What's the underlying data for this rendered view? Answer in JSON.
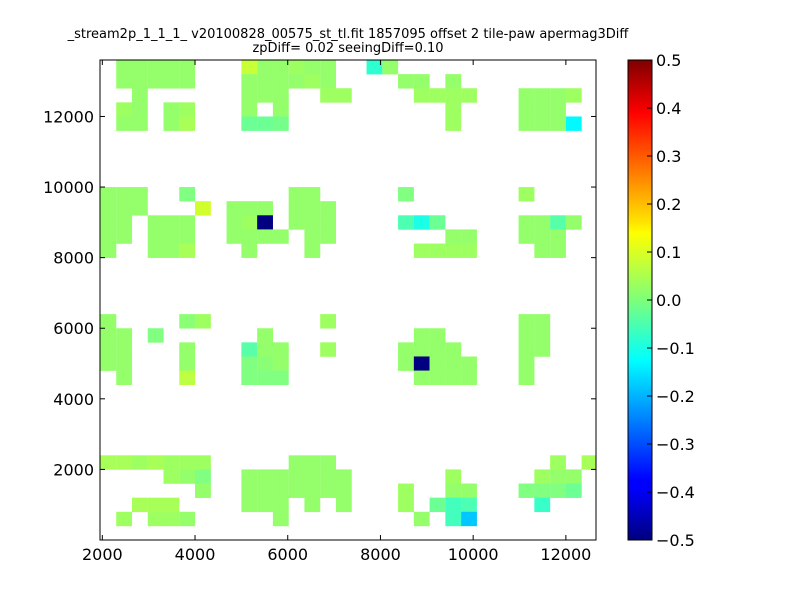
{
  "chart_data": {
    "type": "heatmap",
    "title": "_stream2p_1_1_1_ v20100828_00575_st_tl.fit 1857095 offset 2 tile-paw apermag3Diff",
    "subtitle": "zpDiff= 0.02 seeingDiff=0.10",
    "xlim": [
      1950,
      12650
    ],
    "ylim": [
      0,
      13600
    ],
    "xticks": [
      2000,
      4000,
      6000,
      8000,
      10000,
      12000
    ],
    "yticks": [
      2000,
      4000,
      6000,
      8000,
      10000,
      12000
    ],
    "xtick_labels": [
      "2000",
      "4000",
      "6000",
      "8000",
      "10000",
      "12000"
    ],
    "ytick_labels": [
      "2000",
      "4000",
      "6000",
      "8000",
      "10000",
      "12000"
    ],
    "grid": false,
    "cell_size": [
      335,
      400
    ],
    "colormap": "jet",
    "colorbar": {
      "vmin": -0.5,
      "vmax": 0.5,
      "ticks": [
        0.5,
        0.4,
        0.3,
        0.2,
        0.1,
        0.0,
        -0.1,
        -0.2,
        -0.3,
        -0.4,
        -0.5
      ],
      "tick_labels": [
        "0.5",
        "0.4",
        "0.3",
        "0.2",
        "0.1",
        "0.0",
        "−0.1",
        "−0.2",
        "−0.3",
        "−0.4",
        "−0.5"
      ]
    },
    "cells": [
      [
        2300,
        13200,
        0.02
      ],
      [
        2640,
        13200,
        0.02
      ],
      [
        2980,
        13200,
        0.02
      ],
      [
        3320,
        13200,
        0.02
      ],
      [
        3660,
        13200,
        0.02
      ],
      [
        5000,
        13200,
        0.07
      ],
      [
        5340,
        13200,
        0.02
      ],
      [
        5680,
        13200,
        0.02
      ],
      [
        6020,
        13200,
        0.03
      ],
      [
        6360,
        13200,
        0.02
      ],
      [
        6700,
        13200,
        0.02
      ],
      [
        7700,
        13200,
        -0.08
      ],
      [
        8040,
        13200,
        0.02
      ],
      [
        2300,
        12800,
        0.02
      ],
      [
        2640,
        12800,
        0.02
      ],
      [
        2980,
        12800,
        0.02
      ],
      [
        3320,
        12800,
        0.02
      ],
      [
        3660,
        12800,
        0.02
      ],
      [
        5000,
        12800,
        0.02
      ],
      [
        5340,
        12800,
        0.02
      ],
      [
        5680,
        12800,
        0.02
      ],
      [
        6020,
        12800,
        0.02
      ],
      [
        6360,
        12800,
        0.03
      ],
      [
        6700,
        12800,
        0.02
      ],
      [
        8380,
        12800,
        0.02
      ],
      [
        8720,
        12800,
        0.02
      ],
      [
        9400,
        12800,
        0.02
      ],
      [
        2640,
        12400,
        0.02
      ],
      [
        5000,
        12400,
        0.02
      ],
      [
        5340,
        12400,
        0.02
      ],
      [
        5680,
        12400,
        0.02
      ],
      [
        6700,
        12400,
        0.03
      ],
      [
        7040,
        12400,
        0.03
      ],
      [
        8720,
        12400,
        0.03
      ],
      [
        9060,
        12400,
        0.03
      ],
      [
        9400,
        12400,
        0.03
      ],
      [
        9740,
        12400,
        0.03
      ],
      [
        10980,
        12400,
        0.02
      ],
      [
        11320,
        12400,
        0.02
      ],
      [
        11660,
        12400,
        0.02
      ],
      [
        12000,
        12400,
        0.03
      ],
      [
        2300,
        12000,
        0.03
      ],
      [
        2640,
        12000,
        0.02
      ],
      [
        3320,
        12000,
        0.02
      ],
      [
        3660,
        12000,
        0.03
      ],
      [
        5000,
        12000,
        0.02
      ],
      [
        5680,
        12000,
        0.02
      ],
      [
        9400,
        12000,
        0.03
      ],
      [
        10980,
        12000,
        0.02
      ],
      [
        11320,
        12000,
        0.02
      ],
      [
        11660,
        12000,
        0.02
      ],
      [
        2300,
        11600,
        0.02
      ],
      [
        2640,
        11600,
        0.02
      ],
      [
        3320,
        11600,
        0.02
      ],
      [
        3660,
        11600,
        0.04
      ],
      [
        5000,
        11600,
        -0.02
      ],
      [
        5340,
        11600,
        -0.02
      ],
      [
        5680,
        11600,
        -0.01
      ],
      [
        9400,
        11600,
        0.03
      ],
      [
        10980,
        11600,
        0.02
      ],
      [
        11320,
        11600,
        0.02
      ],
      [
        11660,
        11600,
        0.02
      ],
      [
        12000,
        11600,
        -0.13
      ],
      [
        1960,
        9600,
        0.02
      ],
      [
        2300,
        9600,
        0.02
      ],
      [
        2640,
        9600,
        0.02
      ],
      [
        3660,
        9600,
        0.0
      ],
      [
        6020,
        9600,
        0.02
      ],
      [
        6360,
        9600,
        0.02
      ],
      [
        8380,
        9600,
        0.0
      ],
      [
        10980,
        9600,
        0.03
      ],
      [
        1960,
        9200,
        0.02
      ],
      [
        2300,
        9200,
        0.02
      ],
      [
        2640,
        9200,
        0.02
      ],
      [
        4000,
        9200,
        0.08
      ],
      [
        4680,
        9200,
        0.02
      ],
      [
        5000,
        9200,
        0.02
      ],
      [
        5340,
        9200,
        0.02
      ],
      [
        6020,
        9200,
        0.02
      ],
      [
        6360,
        9200,
        0.02
      ],
      [
        6700,
        9200,
        0.02
      ],
      [
        1960,
        8800,
        0.02
      ],
      [
        2300,
        8800,
        0.02
      ],
      [
        2980,
        8800,
        0.02
      ],
      [
        3320,
        8800,
        0.02
      ],
      [
        3660,
        8800,
        0.02
      ],
      [
        4680,
        8800,
        0.02
      ],
      [
        5000,
        8800,
        0.03
      ],
      [
        5340,
        8800,
        -0.5
      ],
      [
        6020,
        8800,
        0.02
      ],
      [
        6360,
        8800,
        0.02
      ],
      [
        6700,
        8800,
        0.02
      ],
      [
        8380,
        8800,
        -0.05
      ],
      [
        8720,
        8800,
        -0.1
      ],
      [
        9060,
        8800,
        -0.02
      ],
      [
        10980,
        8800,
        0.02
      ],
      [
        11320,
        8800,
        0.02
      ],
      [
        11660,
        8800,
        -0.04
      ],
      [
        12000,
        8800,
        0.02
      ],
      [
        1960,
        8400,
        0.02
      ],
      [
        2300,
        8400,
        0.02
      ],
      [
        2980,
        8400,
        0.02
      ],
      [
        3320,
        8400,
        0.02
      ],
      [
        3660,
        8400,
        0.02
      ],
      [
        4680,
        8400,
        0.02
      ],
      [
        5000,
        8400,
        0.02
      ],
      [
        5340,
        8400,
        0.02
      ],
      [
        5680,
        8400,
        0.02
      ],
      [
        6360,
        8400,
        0.02
      ],
      [
        6700,
        8400,
        0.02
      ],
      [
        9400,
        8400,
        0.02
      ],
      [
        9740,
        8400,
        0.02
      ],
      [
        10980,
        8400,
        0.02
      ],
      [
        11320,
        8400,
        0.02
      ],
      [
        11660,
        8400,
        0.02
      ],
      [
        1960,
        8000,
        0.02
      ],
      [
        2980,
        8000,
        0.02
      ],
      [
        3320,
        8000,
        0.02
      ],
      [
        3660,
        8000,
        0.04
      ],
      [
        5000,
        8000,
        0.02
      ],
      [
        6360,
        8000,
        0.02
      ],
      [
        8720,
        8000,
        0.03
      ],
      [
        9060,
        8000,
        0.03
      ],
      [
        9400,
        8000,
        0.03
      ],
      [
        9740,
        8000,
        0.03
      ],
      [
        11320,
        8000,
        0.02
      ],
      [
        11660,
        8000,
        0.02
      ],
      [
        1960,
        6000,
        0.02
      ],
      [
        3660,
        6000,
        0.01
      ],
      [
        4000,
        6000,
        0.03
      ],
      [
        6700,
        6000,
        0.03
      ],
      [
        10980,
        6000,
        0.02
      ],
      [
        11320,
        6000,
        0.02
      ],
      [
        1960,
        5600,
        0.02
      ],
      [
        2300,
        5600,
        0.02
      ],
      [
        2980,
        5600,
        0.0
      ],
      [
        5340,
        5600,
        0.02
      ],
      [
        8720,
        5600,
        0.02
      ],
      [
        9060,
        5600,
        0.02
      ],
      [
        10980,
        5600,
        0.02
      ],
      [
        11320,
        5600,
        0.02
      ],
      [
        1960,
        5200,
        0.02
      ],
      [
        2300,
        5200,
        0.02
      ],
      [
        3660,
        5200,
        0.02
      ],
      [
        5000,
        5200,
        -0.04
      ],
      [
        5340,
        5200,
        0.02
      ],
      [
        5680,
        5200,
        0.02
      ],
      [
        6700,
        5200,
        0.03
      ],
      [
        8380,
        5200,
        0.02
      ],
      [
        8720,
        5200,
        0.02
      ],
      [
        9060,
        5200,
        0.02
      ],
      [
        9400,
        5200,
        0.02
      ],
      [
        10980,
        5200,
        0.02
      ],
      [
        11320,
        5200,
        0.02
      ],
      [
        1960,
        4800,
        0.02
      ],
      [
        2300,
        4800,
        0.02
      ],
      [
        3660,
        4800,
        0.02
      ],
      [
        5000,
        4800,
        0.0
      ],
      [
        5340,
        4800,
        0.01
      ],
      [
        5680,
        4800,
        0.02
      ],
      [
        8380,
        4800,
        0.02
      ],
      [
        8720,
        4800,
        -0.5
      ],
      [
        9060,
        4800,
        0.02
      ],
      [
        9400,
        4800,
        0.02
      ],
      [
        9740,
        4800,
        0.02
      ],
      [
        10980,
        4800,
        0.02
      ],
      [
        2300,
        4400,
        0.02
      ],
      [
        3660,
        4400,
        0.06
      ],
      [
        5000,
        4400,
        0.0
      ],
      [
        5340,
        4400,
        0.0
      ],
      [
        5680,
        4400,
        0.0
      ],
      [
        8720,
        4400,
        0.02
      ],
      [
        9060,
        4400,
        0.02
      ],
      [
        9400,
        4400,
        0.02
      ],
      [
        9740,
        4400,
        0.02
      ],
      [
        10980,
        4400,
        0.02
      ],
      [
        1960,
        2000,
        0.04
      ],
      [
        2300,
        2000,
        0.04
      ],
      [
        2640,
        2000,
        0.03
      ],
      [
        2980,
        2000,
        0.04
      ],
      [
        3320,
        2000,
        0.03
      ],
      [
        3660,
        2000,
        0.03
      ],
      [
        4000,
        2000,
        0.03
      ],
      [
        6020,
        2000,
        0.02
      ],
      [
        6360,
        2000,
        0.02
      ],
      [
        6700,
        2000,
        0.02
      ],
      [
        11660,
        2000,
        0.03
      ],
      [
        12340,
        2000,
        0.04
      ],
      [
        3320,
        1600,
        0.03
      ],
      [
        3660,
        1600,
        0.02
      ],
      [
        4000,
        1600,
        0.0
      ],
      [
        5000,
        1600,
        0.02
      ],
      [
        5340,
        1600,
        0.02
      ],
      [
        5680,
        1600,
        0.02
      ],
      [
        6020,
        1600,
        0.02
      ],
      [
        6360,
        1600,
        0.02
      ],
      [
        6700,
        1600,
        0.02
      ],
      [
        7040,
        1600,
        0.02
      ],
      [
        9400,
        1600,
        0.03
      ],
      [
        11320,
        1600,
        0.03
      ],
      [
        11660,
        1600,
        0.02
      ],
      [
        12000,
        1600,
        0.02
      ],
      [
        4000,
        1200,
        0.02
      ],
      [
        5000,
        1200,
        0.02
      ],
      [
        5340,
        1200,
        0.02
      ],
      [
        5680,
        1200,
        0.02
      ],
      [
        6020,
        1200,
        0.02
      ],
      [
        6360,
        1200,
        0.02
      ],
      [
        6700,
        1200,
        0.02
      ],
      [
        7040,
        1200,
        0.02
      ],
      [
        8380,
        1200,
        0.03
      ],
      [
        9400,
        1200,
        0.02
      ],
      [
        9740,
        1200,
        0.02
      ],
      [
        10980,
        1200,
        0.0
      ],
      [
        11320,
        1200,
        0.0
      ],
      [
        11660,
        1200,
        0.0
      ],
      [
        12000,
        1200,
        -0.02
      ],
      [
        2640,
        800,
        0.04
      ],
      [
        2980,
        800,
        0.04
      ],
      [
        3320,
        800,
        0.04
      ],
      [
        5000,
        800,
        0.02
      ],
      [
        5340,
        800,
        0.02
      ],
      [
        5680,
        800,
        0.02
      ],
      [
        6360,
        800,
        0.02
      ],
      [
        7040,
        800,
        0.02
      ],
      [
        8380,
        800,
        0.03
      ],
      [
        9060,
        800,
        -0.02
      ],
      [
        9400,
        800,
        -0.06
      ],
      [
        9740,
        800,
        -0.05
      ],
      [
        11320,
        800,
        -0.07
      ],
      [
        2300,
        400,
        0.03
      ],
      [
        2980,
        400,
        0.03
      ],
      [
        3320,
        400,
        0.03
      ],
      [
        3660,
        400,
        0.02
      ],
      [
        5680,
        400,
        0.02
      ],
      [
        8720,
        400,
        0.02
      ],
      [
        9400,
        400,
        -0.06
      ],
      [
        9740,
        400,
        -0.18
      ]
    ]
  }
}
